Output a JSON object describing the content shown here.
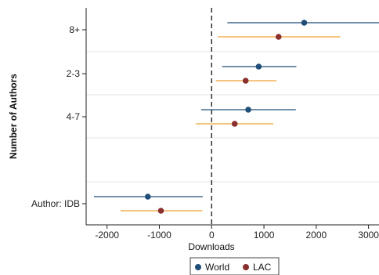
{
  "chart_data": {
    "type": "scatter",
    "subtype": "coefficient-plot",
    "title": "",
    "xlabel": "Downloads",
    "ylabel": "Number of Authors",
    "xlim": [
      -2400,
      3200
    ],
    "xticks": [
      -2000,
      -1000,
      0,
      1000,
      2000,
      3000
    ],
    "reference_line_x": 0,
    "categories": [
      "8+",
      "2-3",
      "4-7",
      "Author: IDB"
    ],
    "series": [
      {
        "name": "World",
        "color": "#1f4e79",
        "points": [
          {
            "category": "8+",
            "estimate": 1770,
            "ci_low": 300,
            "ci_high": 3250
          },
          {
            "category": "2-3",
            "estimate": 900,
            "ci_low": 200,
            "ci_high": 1620
          },
          {
            "category": "4-7",
            "estimate": 700,
            "ci_low": -200,
            "ci_high": 1610
          },
          {
            "category": "Author: IDB",
            "estimate": -1220,
            "ci_low": -2250,
            "ci_high": -170
          }
        ]
      },
      {
        "name": "LAC",
        "color": "#8b2e2e",
        "ci_color": "#f0a030",
        "points": [
          {
            "category": "8+",
            "estimate": 1280,
            "ci_low": 120,
            "ci_high": 2460
          },
          {
            "category": "2-3",
            "estimate": 650,
            "ci_low": 80,
            "ci_high": 1240
          },
          {
            "category": "4-7",
            "estimate": 440,
            "ci_low": -300,
            "ci_high": 1180
          },
          {
            "category": "Author: IDB",
            "estimate": -970,
            "ci_low": -1740,
            "ci_high": -180
          }
        ]
      }
    ],
    "grid": true,
    "legend": {
      "position": "bottom",
      "entries": [
        "World",
        "LAC"
      ]
    }
  }
}
